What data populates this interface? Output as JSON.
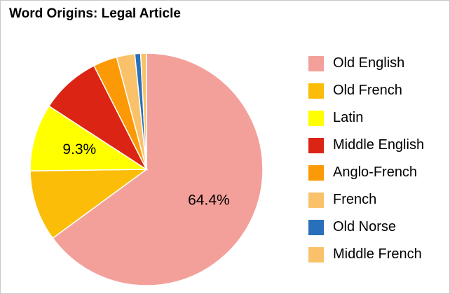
{
  "chart_data": {
    "type": "pie",
    "title": "Word Origins: Legal Article",
    "categories": [
      "Old English",
      "Old French",
      "Latin",
      "Middle English",
      "Anglo-French",
      "French",
      "Old Norse",
      "Middle French"
    ],
    "values": [
      64.4,
      9.8,
      9.3,
      8.3,
      3.3,
      2.5,
      0.8,
      0.8
    ],
    "colors": [
      "#f4a09a",
      "#fbbd08",
      "#ffff00",
      "#dc2415",
      "#fb9a06",
      "#f9c26a",
      "#2870ba",
      "#f9c26a"
    ],
    "data_labels": [
      "64.4%",
      "",
      "9.3%",
      "",
      "",
      "",
      "",
      ""
    ],
    "legend_position": "right",
    "start": "12 o'clock",
    "direction": "clockwise"
  }
}
